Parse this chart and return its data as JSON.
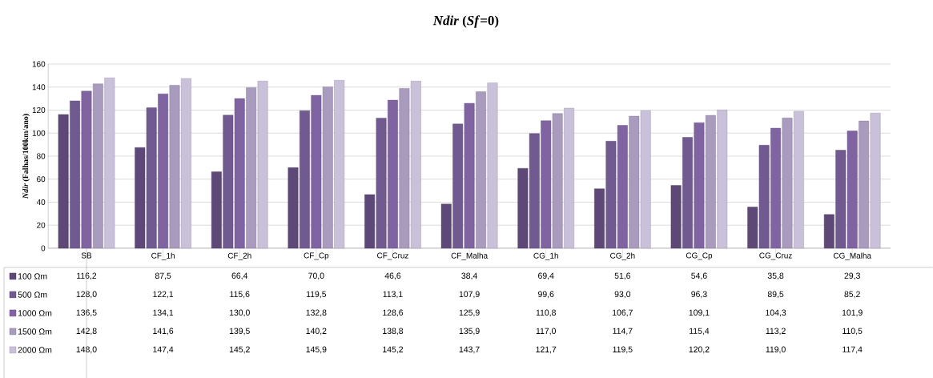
{
  "chart_data": {
    "type": "bar",
    "title": "*Ndir* (*Sf*=0)",
    "ylabel": "*Ndir* (Falhas/100km/ano)",
    "categories": [
      "SB",
      "CF_1h",
      "CF_2h",
      "CF_Cp",
      "CF_Cruz",
      "CF_Malha",
      "CG_1h",
      "CG_2h",
      "CG_Cp",
      "CG_Cruz",
      "CG_Malha"
    ],
    "series": [
      {
        "name": "100 Ωm",
        "color": "#5e4878",
        "values": [
          116.2,
          87.5,
          66.4,
          70.0,
          46.6,
          38.4,
          69.4,
          51.6,
          54.6,
          35.8,
          29.3
        ],
        "value_labels": [
          "116,2",
          "87,5",
          "66,4",
          "70,0",
          "46,6",
          "38,4",
          "69,4",
          "51,6",
          "54,6",
          "35,8",
          "29,3"
        ]
      },
      {
        "name": "500 Ωm",
        "color": "#715a8f",
        "values": [
          128.0,
          122.1,
          115.6,
          119.5,
          113.1,
          107.9,
          99.6,
          93.0,
          96.3,
          89.5,
          85.2
        ],
        "value_labels": [
          "128,0",
          "122,1",
          "115,6",
          "119,5",
          "113,1",
          "107,9",
          "99,6",
          "93,0",
          "96,3",
          "89,5",
          "85,2"
        ]
      },
      {
        "name": "1000 Ωm",
        "color": "#8064a2",
        "values": [
          136.5,
          134.1,
          130.0,
          132.8,
          128.6,
          125.9,
          110.8,
          106.7,
          109.1,
          104.3,
          101.9
        ],
        "value_labels": [
          "136,5",
          "134,1",
          "130,0",
          "132,8",
          "128,6",
          "125,9",
          "110,8",
          "106,7",
          "109,1",
          "104,3",
          "101,9"
        ]
      },
      {
        "name": "1500 Ωm",
        "color": "#a99bbd",
        "values": [
          142.8,
          141.6,
          139.5,
          140.2,
          138.8,
          135.9,
          117.0,
          114.7,
          115.4,
          113.2,
          110.5
        ],
        "value_labels": [
          "142,8",
          "141,6",
          "139,5",
          "140,2",
          "138,8",
          "135,9",
          "117,0",
          "114,7",
          "115,4",
          "113,2",
          "110,5"
        ]
      },
      {
        "name": "2000 Ωm",
        "color": "#c9c0d9",
        "values": [
          148.0,
          147.4,
          145.2,
          145.9,
          145.2,
          143.7,
          121.7,
          119.5,
          120.2,
          119.0,
          117.4
        ],
        "value_labels": [
          "148,0",
          "147,4",
          "145,2",
          "145,9",
          "145,2",
          "143,7",
          "121,7",
          "119,5",
          "120,2",
          "119,0",
          "117,4"
        ]
      }
    ],
    "ylim": [
      0,
      160
    ],
    "yticks": [
      0,
      20,
      40,
      60,
      80,
      100,
      120,
      140,
      160
    ],
    "grid": "y",
    "legend": "bottom left"
  }
}
